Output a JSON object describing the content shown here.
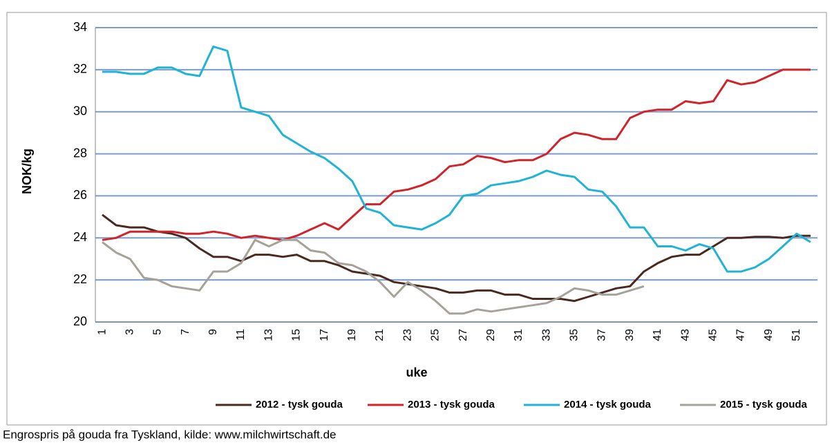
{
  "chart_data": {
    "type": "line",
    "y_label": "NOK/kg",
    "x_label": "uke",
    "caption": "Engrospris på gouda fra Tyskland, kilde: www.milchwirtschaft.de",
    "categories": [
      1,
      null,
      3,
      null,
      5,
      null,
      7,
      null,
      9,
      null,
      11,
      null,
      13,
      null,
      15,
      null,
      17,
      null,
      19,
      null,
      21,
      null,
      23,
      null,
      25,
      null,
      27,
      null,
      29,
      null,
      31,
      null,
      33,
      null,
      35,
      null,
      37,
      null,
      39,
      null,
      41,
      null,
      43,
      null,
      45,
      null,
      47,
      null,
      49,
      null,
      51,
      null
    ],
    "ylim": [
      20,
      34
    ],
    "yticks": [
      20,
      22,
      24,
      26,
      28,
      30,
      32,
      34
    ],
    "grid": true,
    "series": [
      {
        "name": "2012 - tysk gouda",
        "color": "#4a2a1e",
        "values": [
          25.1,
          24.6,
          24.5,
          24.5,
          24.3,
          24.2,
          24.0,
          23.5,
          23.1,
          23.1,
          22.9,
          23.2,
          23.2,
          23.1,
          23.2,
          22.9,
          22.9,
          22.7,
          22.4,
          22.3,
          22.2,
          21.9,
          21.8,
          21.7,
          21.6,
          21.4,
          21.4,
          21.5,
          21.5,
          21.3,
          21.3,
          21.1,
          21.1,
          21.1,
          21.0,
          21.2,
          21.4,
          21.6,
          21.7,
          22.4,
          22.8,
          23.1,
          23.2,
          23.2,
          23.6,
          24.0,
          24.0,
          24.05,
          24.05,
          24.0,
          24.1,
          24.1
        ]
      },
      {
        "name": "2013 - tysk gouda",
        "color": "#d0232a",
        "values": [
          23.9,
          24.0,
          24.3,
          24.3,
          24.3,
          24.3,
          24.2,
          24.2,
          24.3,
          24.2,
          24.0,
          24.1,
          24.0,
          23.9,
          24.1,
          24.4,
          24.7,
          24.4,
          25.0,
          25.6,
          25.6,
          26.2,
          26.3,
          26.5,
          26.8,
          27.4,
          27.5,
          27.9,
          27.8,
          27.6,
          27.7,
          27.7,
          28.0,
          28.7,
          29.0,
          28.9,
          28.7,
          28.7,
          29.7,
          30.0,
          30.1,
          30.1,
          30.5,
          30.4,
          30.5,
          31.5,
          31.3,
          31.4,
          31.7,
          32.0,
          32.0,
          32.0
        ]
      },
      {
        "name": "2014 - tysk gouda",
        "color": "#1fb3d6",
        "values": [
          31.9,
          31.9,
          31.8,
          31.8,
          32.1,
          32.1,
          31.8,
          31.7,
          33.1,
          32.9,
          30.2,
          30.0,
          29.8,
          28.9,
          28.5,
          28.1,
          27.8,
          27.3,
          26.7,
          25.4,
          25.2,
          24.6,
          24.5,
          24.4,
          24.7,
          25.1,
          26.0,
          26.1,
          26.5,
          26.6,
          26.7,
          26.9,
          27.2,
          27.0,
          26.9,
          26.3,
          26.2,
          25.5,
          24.5,
          24.5,
          23.6,
          23.6,
          23.4,
          23.7,
          23.5,
          22.4,
          22.4,
          22.6,
          23.0,
          23.6,
          24.2,
          23.8
        ]
      },
      {
        "name": "2015 - tysk gouda",
        "color": "#a6a29a",
        "values": [
          23.8,
          23.3,
          23.0,
          22.1,
          22.0,
          21.7,
          21.6,
          21.5,
          22.4,
          22.4,
          22.8,
          23.9,
          23.6,
          23.9,
          23.9,
          23.4,
          23.3,
          22.8,
          22.7,
          22.4,
          21.9,
          21.2,
          21.9,
          21.5,
          21.0,
          20.4,
          20.4,
          20.6,
          20.5,
          20.6,
          20.7,
          20.8,
          20.9,
          21.2,
          21.6,
          21.5,
          21.3,
          21.3,
          21.5,
          21.7,
          null,
          null,
          null,
          null,
          null,
          null,
          null,
          null,
          null,
          null,
          null,
          null
        ]
      }
    ]
  }
}
